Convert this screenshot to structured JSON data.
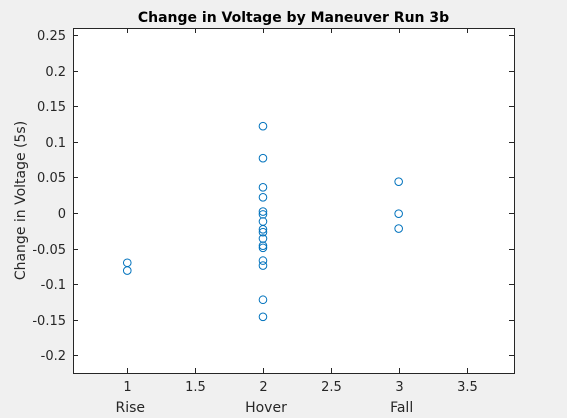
{
  "chart_data": {
    "type": "scatter",
    "title": "Change in Voltage by Maneuver Run 3b",
    "xlabel": "",
    "ylabel": "Change in Voltage (5s)",
    "xlim": [
      0.6,
      3.85
    ],
    "ylim": [
      -0.225,
      0.26
    ],
    "xticks": [
      1,
      1.5,
      2,
      2.5,
      3,
      3.5
    ],
    "xtick_labels": [
      "1",
      "1.5",
      "2",
      "2.5",
      "3",
      "3.5"
    ],
    "yticks": [
      -0.2,
      -0.15,
      -0.1,
      -0.05,
      0,
      0.05,
      0.1,
      0.15,
      0.2,
      0.25
    ],
    "ytick_labels": [
      "-0.2",
      "-0.15",
      "-0.1",
      "-0.05",
      "0",
      "0.05",
      "0.1",
      "0.15",
      "0.2",
      "0.25"
    ],
    "categories": [
      {
        "x": 1,
        "label": "Rise"
      },
      {
        "x": 2,
        "label": "Hover"
      },
      {
        "x": 3,
        "label": "Fall"
      }
    ],
    "marker": "open-circle",
    "marker_color": "#0072bd",
    "grid": false,
    "points": [
      {
        "x": 1,
        "y": -0.07
      },
      {
        "x": 1,
        "y": -0.081
      },
      {
        "x": 2,
        "y": 0.122
      },
      {
        "x": 2,
        "y": 0.077
      },
      {
        "x": 2,
        "y": 0.036
      },
      {
        "x": 2,
        "y": 0.022
      },
      {
        "x": 2,
        "y": 0.002
      },
      {
        "x": 2,
        "y": -0.002
      },
      {
        "x": 2,
        "y": -0.012
      },
      {
        "x": 2,
        "y": -0.023
      },
      {
        "x": 2,
        "y": -0.027
      },
      {
        "x": 2,
        "y": -0.036
      },
      {
        "x": 2,
        "y": -0.046
      },
      {
        "x": 2,
        "y": -0.049
      },
      {
        "x": 2,
        "y": -0.067
      },
      {
        "x": 2,
        "y": -0.074
      },
      {
        "x": 2,
        "y": -0.122
      },
      {
        "x": 2,
        "y": -0.146
      },
      {
        "x": 3,
        "y": 0.044
      },
      {
        "x": 3,
        "y": -0.001
      },
      {
        "x": 3,
        "y": -0.022
      }
    ]
  }
}
